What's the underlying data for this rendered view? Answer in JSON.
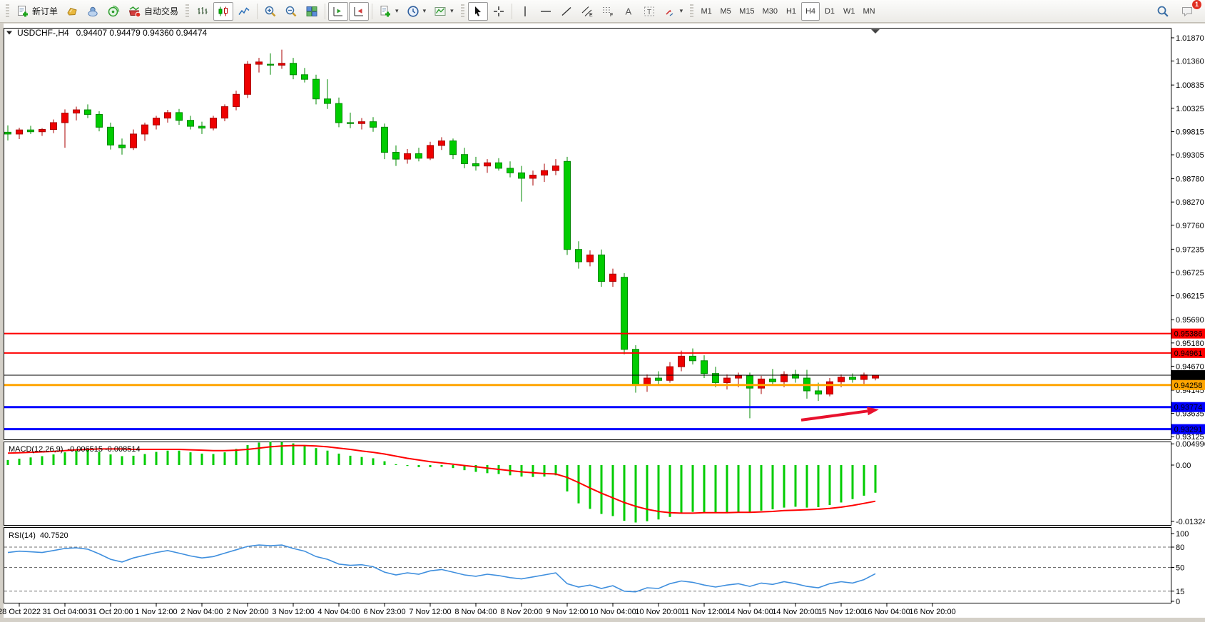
{
  "toolbar": {
    "new_order": "新订单",
    "autotrading": "自动交易",
    "timeframes": [
      "M1",
      "M5",
      "M15",
      "M30",
      "H1",
      "H4",
      "D1",
      "W1",
      "MN"
    ],
    "active_timeframe": "H4",
    "badge": "1"
  },
  "chart": {
    "symbol_period": "USDCHF-,H4",
    "ohlc_readout": "0.94407 0.94479 0.94360 0.94474"
  },
  "chart_data": {
    "type": "candlestick",
    "symbol": "USDCHF-",
    "timeframe": "H4",
    "readout": {
      "open": "0.94407",
      "high": "0.94479",
      "low": "0.94360",
      "close": "0.94474"
    },
    "bull_color": "#ee0000",
    "bear_color": "#00cc00",
    "bull_stroke": "#a80000",
    "bear_stroke": "#008800",
    "price_axis": {
      "max": 1.02073,
      "min": 0.93066,
      "ticks": [
        "1.01870",
        "1.01360",
        "1.00835",
        "1.00325",
        "0.99815",
        "0.99305",
        "0.98780",
        "0.98270",
        "0.97760",
        "0.97235",
        "0.96725",
        "0.96215",
        "0.95690",
        "0.95180",
        "0.94670",
        "0.94145",
        "0.93635",
        "0.93125"
      ]
    },
    "time_labels": [
      "28 Oct 2022",
      "31 Oct 04:00",
      "31 Oct 20:00",
      "1 Nov 12:00",
      "2 Nov 04:00",
      "2 Nov 20:00",
      "3 Nov 12:00",
      "4 Nov 04:00",
      "6 Nov 23:00",
      "7 Nov 12:00",
      "8 Nov 04:00",
      "8 Nov 20:00",
      "9 Nov 12:00",
      "10 Nov 04:00",
      "10 Nov 20:00",
      "11 Nov 12:00",
      "14 Nov 04:00",
      "14 Nov 20:00",
      "15 Nov 12:00",
      "16 Nov 04:00",
      "16 Nov 20:00"
    ],
    "hlines": [
      {
        "price": 0.95386,
        "label": "0.95386",
        "color": "#ff0000",
        "width": 2
      },
      {
        "price": 0.94961,
        "label": "0.94961",
        "color": "#ff0000",
        "width": 2
      },
      {
        "price": 0.94474,
        "label": "0.94474",
        "color": "#000000",
        "width": 1
      },
      {
        "price": 0.94258,
        "label": "0.94258",
        "color": "#ffa500",
        "width": 3
      },
      {
        "price": 0.93774,
        "label": "0.93774",
        "color": "#0000ff",
        "width": 3
      },
      {
        "price": 0.93291,
        "label": "0.93291",
        "color": "#0000ff",
        "width": 3
      }
    ],
    "candles": [
      [
        0.998,
        0.9995,
        0.9962,
        0.9976
      ],
      [
        0.9976,
        0.999,
        0.9965,
        0.9985
      ],
      [
        0.9985,
        0.9994,
        0.9976,
        0.9981
      ],
      [
        0.9981,
        0.9989,
        0.9972,
        0.9986
      ],
      [
        0.9986,
        1.0008,
        0.9978,
        1.0001
      ],
      [
        1.0001,
        1.003,
        0.9946,
        1.0022
      ],
      [
        1.0022,
        1.0036,
        1.0006,
        1.0029
      ],
      [
        1.0029,
        1.0041,
        1.0011,
        1.0019
      ],
      [
        1.0019,
        1.0026,
        0.9982,
        0.9991
      ],
      [
        0.9991,
        1.0001,
        0.9942,
        0.9952
      ],
      [
        0.9952,
        0.9966,
        0.9931,
        0.9946
      ],
      [
        0.9946,
        0.9986,
        0.9941,
        0.9976
      ],
      [
        0.9976,
        1.0001,
        0.9961,
        0.9996
      ],
      [
        0.9996,
        1.0016,
        0.9986,
        1.0011
      ],
      [
        1.0011,
        1.0029,
        1.0001,
        1.0023
      ],
      [
        1.0023,
        1.0031,
        0.9996,
        1.0006
      ],
      [
        1.0006,
        1.0016,
        0.9986,
        0.9993
      ],
      [
        0.9993,
        1.0003,
        0.9976,
        0.9989
      ],
      [
        0.9989,
        1.0016,
        0.9984,
        1.0011
      ],
      [
        1.0011,
        1.0041,
        1.0004,
        1.0036
      ],
      [
        1.0036,
        1.0071,
        1.0028,
        1.0063
      ],
      [
        1.0063,
        1.0136,
        1.0055,
        1.0129
      ],
      [
        1.0129,
        1.0143,
        1.0111,
        1.0134
      ],
      [
        1.0129,
        1.0153,
        1.0106,
        1.0127
      ],
      [
        1.0127,
        1.0161,
        1.0119,
        1.0131
      ],
      [
        1.0131,
        1.0143,
        1.0096,
        1.0106
      ],
      [
        1.0106,
        1.0121,
        1.0089,
        1.0096
      ],
      [
        1.0096,
        1.0106,
        1.0041,
        1.0053
      ],
      [
        1.0053,
        1.0096,
        1.0031,
        1.0043
      ],
      [
        1.0043,
        1.0056,
        0.9991,
        1.0001
      ],
      [
        1.0001,
        1.0023,
        0.9989,
        0.9999
      ],
      [
        0.9999,
        1.0011,
        0.9986,
        1.0003
      ],
      [
        1.0003,
        1.0013,
        0.9981,
        0.9991
      ],
      [
        0.9991,
        0.9999,
        0.9921,
        0.9936
      ],
      [
        0.9936,
        0.9951,
        0.9906,
        0.9921
      ],
      [
        0.9921,
        0.9943,
        0.9911,
        0.9933
      ],
      [
        0.9933,
        0.9946,
        0.9916,
        0.9923
      ],
      [
        0.9923,
        0.9959,
        0.9919,
        0.9951
      ],
      [
        0.9951,
        0.9969,
        0.9941,
        0.9961
      ],
      [
        0.9961,
        0.9966,
        0.9921,
        0.9931
      ],
      [
        0.9931,
        0.9946,
        0.9901,
        0.9911
      ],
      [
        0.9911,
        0.9926,
        0.9896,
        0.9906
      ],
      [
        0.9906,
        0.9921,
        0.9891,
        0.9913
      ],
      [
        0.9913,
        0.9923,
        0.9896,
        0.9901
      ],
      [
        0.9901,
        0.9916,
        0.9881,
        0.9891
      ],
      [
        0.9891,
        0.9906,
        0.9828,
        0.9879
      ],
      [
        0.9879,
        0.9896,
        0.9863,
        0.9886
      ],
      [
        0.9886,
        0.9911,
        0.9871,
        0.9896
      ],
      [
        0.9896,
        0.9921,
        0.9886,
        0.9906
      ],
      [
        0.9916,
        0.9926,
        0.9711,
        0.9723
      ],
      [
        0.9723,
        0.9741,
        0.9681,
        0.9696
      ],
      [
        0.9696,
        0.9721,
        0.9686,
        0.9711
      ],
      [
        0.9711,
        0.9723,
        0.9641,
        0.9653
      ],
      [
        0.9653,
        0.9681,
        0.9641,
        0.9669
      ],
      [
        0.9662,
        0.9671,
        0.9493,
        0.9504
      ],
      [
        0.9504,
        0.9513,
        0.9409,
        0.9426
      ],
      [
        0.9426,
        0.9449,
        0.9411,
        0.9441
      ],
      [
        0.9441,
        0.9456,
        0.9426,
        0.9436
      ],
      [
        0.9436,
        0.9476,
        0.9431,
        0.9466
      ],
      [
        0.9466,
        0.9501,
        0.9456,
        0.9489
      ],
      [
        0.9489,
        0.9506,
        0.9471,
        0.9479
      ],
      [
        0.9479,
        0.9491,
        0.9441,
        0.9451
      ],
      [
        0.9451,
        0.9466,
        0.9421,
        0.9431
      ],
      [
        0.9431,
        0.9449,
        0.9416,
        0.9441
      ],
      [
        0.9441,
        0.9453,
        0.9421,
        0.9446
      ],
      [
        0.9446,
        0.9453,
        0.9353,
        0.9419
      ],
      [
        0.9419,
        0.9446,
        0.9406,
        0.9439
      ],
      [
        0.9439,
        0.9461,
        0.9426,
        0.9433
      ],
      [
        0.9433,
        0.9456,
        0.9421,
        0.9449
      ],
      [
        0.9449,
        0.9459,
        0.9431,
        0.9441
      ],
      [
        0.9441,
        0.9459,
        0.9396,
        0.9413
      ],
      [
        0.9413,
        0.9431,
        0.9391,
        0.9406
      ],
      [
        0.9406,
        0.9441,
        0.9401,
        0.9433
      ],
      [
        0.9433,
        0.9449,
        0.9421,
        0.9443
      ],
      [
        0.9443,
        0.9451,
        0.9431,
        0.9438
      ],
      [
        0.9438,
        0.9453,
        0.9428,
        0.9448
      ],
      [
        0.9441,
        0.9448,
        0.9436,
        0.94474
      ]
    ],
    "macd": {
      "label": "MACD(12,26,9)",
      "values_text": "-0.006515 -0.008514",
      "hist_color": "#00cc00",
      "signal_color": "#ff0000",
      "axis": {
        "max": 0.00537,
        "min": -0.01409,
        "ticks": [
          {
            "v": 0.004996,
            "label": "0.004996"
          },
          {
            "v": 0.0,
            "label": "0.00"
          },
          {
            "v": -0.013248,
            "label": "-0.013248"
          }
        ]
      },
      "histogram": [
        0.0012,
        0.0015,
        0.0018,
        0.0021,
        0.0025,
        0.003,
        0.0034,
        0.0036,
        0.0031,
        0.0025,
        0.0021,
        0.0022,
        0.0026,
        0.0031,
        0.0034,
        0.0034,
        0.003,
        0.0027,
        0.0026,
        0.003,
        0.0038,
        0.0047,
        0.0053,
        0.0055,
        0.0054,
        0.0051,
        0.0046,
        0.004,
        0.0034,
        0.0027,
        0.0022,
        0.0019,
        0.0016,
        0.0009,
        0.0002,
        -0.0002,
        -0.0005,
        -0.0005,
        -0.0004,
        -0.0007,
        -0.0012,
        -0.0016,
        -0.0019,
        -0.0021,
        -0.0024,
        -0.0027,
        -0.0028,
        -0.0027,
        -0.0024,
        -0.0062,
        -0.009,
        -0.0103,
        -0.0115,
        -0.012,
        -0.0131,
        -0.0135,
        -0.0132,
        -0.0128,
        -0.0122,
        -0.0114,
        -0.011,
        -0.0111,
        -0.0113,
        -0.0112,
        -0.011,
        -0.011,
        -0.0107,
        -0.0104,
        -0.01,
        -0.0098,
        -0.01,
        -0.0099,
        -0.0094,
        -0.0088,
        -0.008,
        -0.0072,
        -0.0065
      ],
      "signal": [
        0.0028,
        0.0029,
        0.003,
        0.0031,
        0.0032,
        0.0034,
        0.0036,
        0.0037,
        0.0038,
        0.0038,
        0.0038,
        0.0037,
        0.0037,
        0.0037,
        0.0037,
        0.0037,
        0.0036,
        0.0035,
        0.0034,
        0.0034,
        0.0035,
        0.0037,
        0.004,
        0.0043,
        0.0045,
        0.0046,
        0.0046,
        0.0045,
        0.0043,
        0.004,
        0.0037,
        0.0033,
        0.003,
        0.0026,
        0.0021,
        0.0016,
        0.0012,
        0.0008,
        0.0005,
        0.0002,
        -0.0001,
        -0.0004,
        -0.0007,
        -0.001,
        -0.0013,
        -0.0016,
        -0.0018,
        -0.002,
        -0.0021,
        -0.0029,
        -0.0041,
        -0.0054,
        -0.0066,
        -0.0077,
        -0.0088,
        -0.0097,
        -0.0104,
        -0.0109,
        -0.0112,
        -0.0113,
        -0.0113,
        -0.0112,
        -0.0112,
        -0.0112,
        -0.0111,
        -0.0111,
        -0.011,
        -0.0109,
        -0.0107,
        -0.0106,
        -0.0105,
        -0.0104,
        -0.0102,
        -0.0099,
        -0.0095,
        -0.009,
        -0.0085
      ]
    },
    "rsi": {
      "label": "RSI(14)",
      "value_text": "40.7520",
      "line_color": "#3f8fde",
      "levels": [
        80,
        50,
        15
      ],
      "axis_ticks": [
        {
          "v": 100,
          "label": "100"
        },
        {
          "v": 80,
          "label": "80"
        },
        {
          "v": 50,
          "label": "50"
        },
        {
          "v": 15,
          "label": "15"
        },
        {
          "v": 0,
          "label": "0"
        }
      ],
      "values": [
        72,
        74,
        73,
        72,
        75,
        78,
        79,
        77,
        70,
        62,
        58,
        64,
        68,
        72,
        75,
        71,
        67,
        64,
        66,
        71,
        76,
        81,
        83,
        82,
        83,
        78,
        74,
        66,
        62,
        55,
        53,
        54,
        51,
        43,
        39,
        42,
        40,
        45,
        47,
        43,
        39,
        37,
        40,
        38,
        35,
        33,
        36,
        39,
        42,
        26,
        21,
        24,
        19,
        23,
        15,
        14,
        20,
        19,
        26,
        30,
        28,
        24,
        21,
        24,
        26,
        22,
        27,
        25,
        29,
        26,
        22,
        20,
        26,
        29,
        27,
        32,
        40.75
      ]
    },
    "arrow": {
      "from": {
        "bar": 69.5,
        "price": 0.9349
      },
      "to": {
        "bar": 76.3,
        "price": 0.9372
      },
      "color": "#e8112d"
    },
    "layout_hints": {
      "grid": "off",
      "label_every_n_bars": 4,
      "first_labeled_bar": 1
    }
  }
}
